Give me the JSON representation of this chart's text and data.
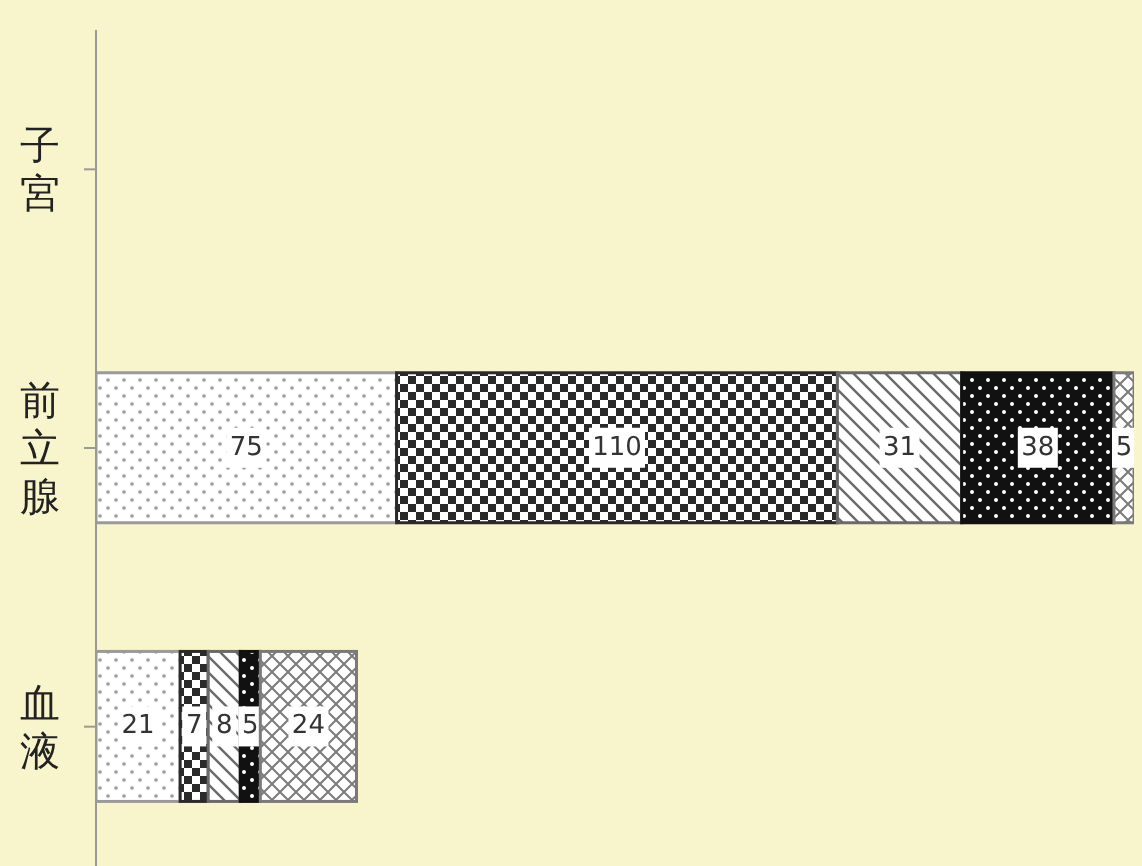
{
  "chart_data": {
    "type": "bar",
    "orientation": "horizontal",
    "stacked": true,
    "data_labels": true,
    "categories": [
      "子宮",
      "前立腺",
      "血液"
    ],
    "series": [
      {
        "color": "#9a9a9a",
        "values": [
          null,
          75,
          21
        ]
      },
      {
        "color": "#2a2a2a",
        "values": [
          null,
          110,
          7
        ]
      },
      {
        "color": "#6a6a6a",
        "values": [
          null,
          31,
          8
        ]
      },
      {
        "color": "#111111",
        "values": [
          null,
          38,
          5
        ]
      },
      {
        "color": "#7a7a7a",
        "values": [
          null,
          5,
          24
        ]
      }
    ]
  }
}
